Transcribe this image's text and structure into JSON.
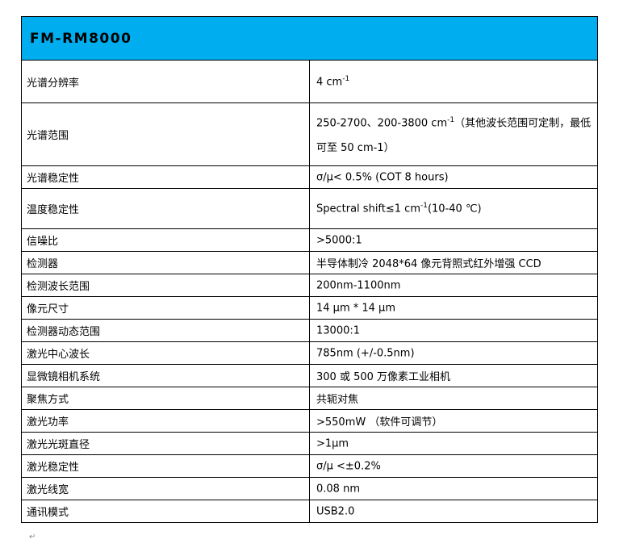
{
  "title": "FM-RM8000",
  "accent_color": "#00aeef",
  "rows": [
    {
      "label": "光谱分辨率",
      "value": "4 cm",
      "sup": "-1",
      "after": ""
    },
    {
      "label": "光谱范围",
      "value": "250-2700、200-3800  cm",
      "sup": "-1",
      "after": "（其他波长范围可定制，最低可至 50 cm-1）"
    },
    {
      "label": "光谱稳定性",
      "value": "σ/μ< 0.5%    (COT 8 hours)",
      "sup": "",
      "after": ""
    },
    {
      "label": "温度稳定性",
      "value": "Spectral  shift≤1 cm",
      "sup": "-1",
      "after": "(10-40  ℃)"
    },
    {
      "label": "信噪比",
      "value": ">5000:1",
      "sup": "",
      "after": ""
    },
    {
      "label": "检测器",
      "value": "半导体制冷 2048*64 像元背照式红外增强 CCD",
      "sup": "",
      "after": ""
    },
    {
      "label": "检测波长范围",
      "value": "200nm-1100nm",
      "sup": "",
      "after": ""
    },
    {
      "label": "像元尺寸",
      "value": "14  μm * 14  μm",
      "sup": "",
      "after": ""
    },
    {
      "label": "检测器动态范围",
      "value": "13000:1",
      "sup": "",
      "after": ""
    },
    {
      "label": "激光中心波长",
      "value": "785nm (+/-0.5nm)",
      "sup": "",
      "after": ""
    },
    {
      "label": "显微镜相机系统",
      "value": "300 或 500 万像素工业相机",
      "sup": "",
      "after": ""
    },
    {
      "label": "聚焦方式",
      "value": "共轭对焦",
      "sup": "",
      "after": ""
    },
    {
      "label": "激光功率",
      "value": ">550mW  （软件可调节）",
      "sup": "",
      "after": ""
    },
    {
      "label": "激光光斑直径",
      "value": ">1μm",
      "sup": "",
      "after": ""
    },
    {
      "label": "激光稳定性",
      "value": "σ/μ  <±0.2%",
      "sup": "",
      "after": ""
    },
    {
      "label": "激光线宽",
      "value": "0.08  nm",
      "sup": "",
      "after": ""
    },
    {
      "label": "通讯模式",
      "value": "USB2.0",
      "sup": "",
      "after": ""
    }
  ]
}
